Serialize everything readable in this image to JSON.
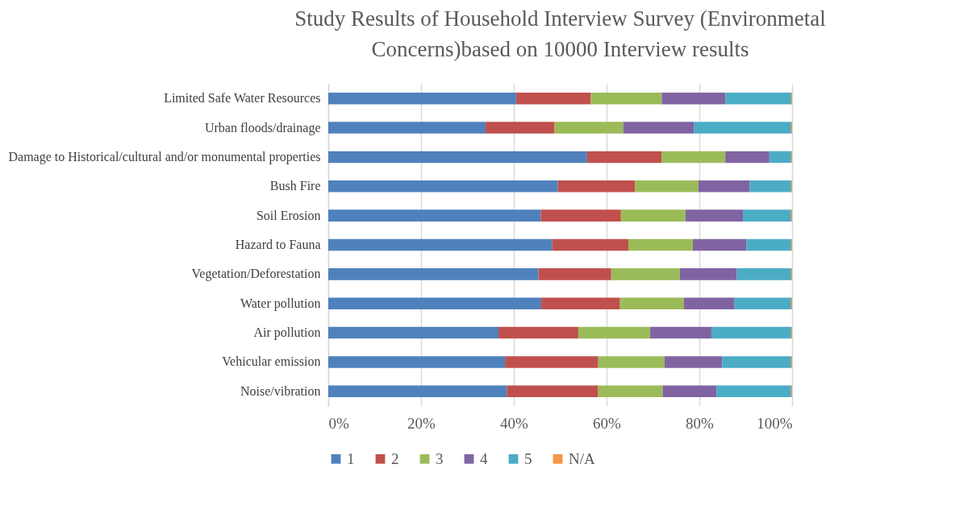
{
  "chart_data": {
    "type": "bar",
    "orientation": "horizontal",
    "stacked": true,
    "title": "Study Results of Household Interview Survey (Environmetal Concerns)based on 10000 Interview results",
    "categories": [
      "Limited Safe Water Resources",
      "Urban floods/drainage",
      "Damage to Historical/cultural and/or monumental properties",
      "Bush Fire",
      "Soil Erosion",
      "Hazard to Fauna",
      "Vegetation/Deforestation",
      "Water pollution",
      "Air pollution",
      "Vehicular emission",
      "Noise/vibration"
    ],
    "series": [
      {
        "name": "1",
        "color": "#4f81bd",
        "values": [
          40.5,
          33.9,
          55.8,
          49.5,
          45.8,
          48.3,
          45.3,
          45.9,
          36.7,
          38.1,
          38.5
        ]
      },
      {
        "name": "2",
        "color": "#c0504d",
        "values": [
          16.1,
          14.9,
          16.1,
          16.6,
          17.3,
          16.4,
          15.7,
          17.0,
          17.2,
          20.1,
          19.7
        ]
      },
      {
        "name": "3",
        "color": "#9bbb59",
        "values": [
          15.3,
          14.8,
          13.7,
          13.7,
          13.9,
          13.9,
          14.8,
          13.8,
          15.5,
          14.3,
          13.9
        ]
      },
      {
        "name": "4",
        "color": "#8064a2",
        "values": [
          13.7,
          15.3,
          9.5,
          11.1,
          12.4,
          11.6,
          12.3,
          10.9,
          13.2,
          12.4,
          11.6
        ]
      },
      {
        "name": "5",
        "color": "#4bacc6",
        "values": [
          14.2,
          20.9,
          4.7,
          8.9,
          10.4,
          9.6,
          11.7,
          12.2,
          17.2,
          14.9,
          16.1
        ]
      },
      {
        "name": "N/A",
        "color": "#f79646",
        "values": [
          0.2,
          0.2,
          0.2,
          0.2,
          0.2,
          0.2,
          0.2,
          0.2,
          0.2,
          0.2,
          0.2
        ]
      }
    ],
    "xlim": [
      0,
      100
    ],
    "xticks": [
      {
        "value": 0,
        "label": "0%"
      },
      {
        "value": 20,
        "label": "20%"
      },
      {
        "value": 40,
        "label": "40%"
      },
      {
        "value": 60,
        "label": "60%"
      },
      {
        "value": 80,
        "label": "80%"
      },
      {
        "value": 100,
        "label": "100%"
      }
    ],
    "grid": "x",
    "legend": "bottom"
  }
}
